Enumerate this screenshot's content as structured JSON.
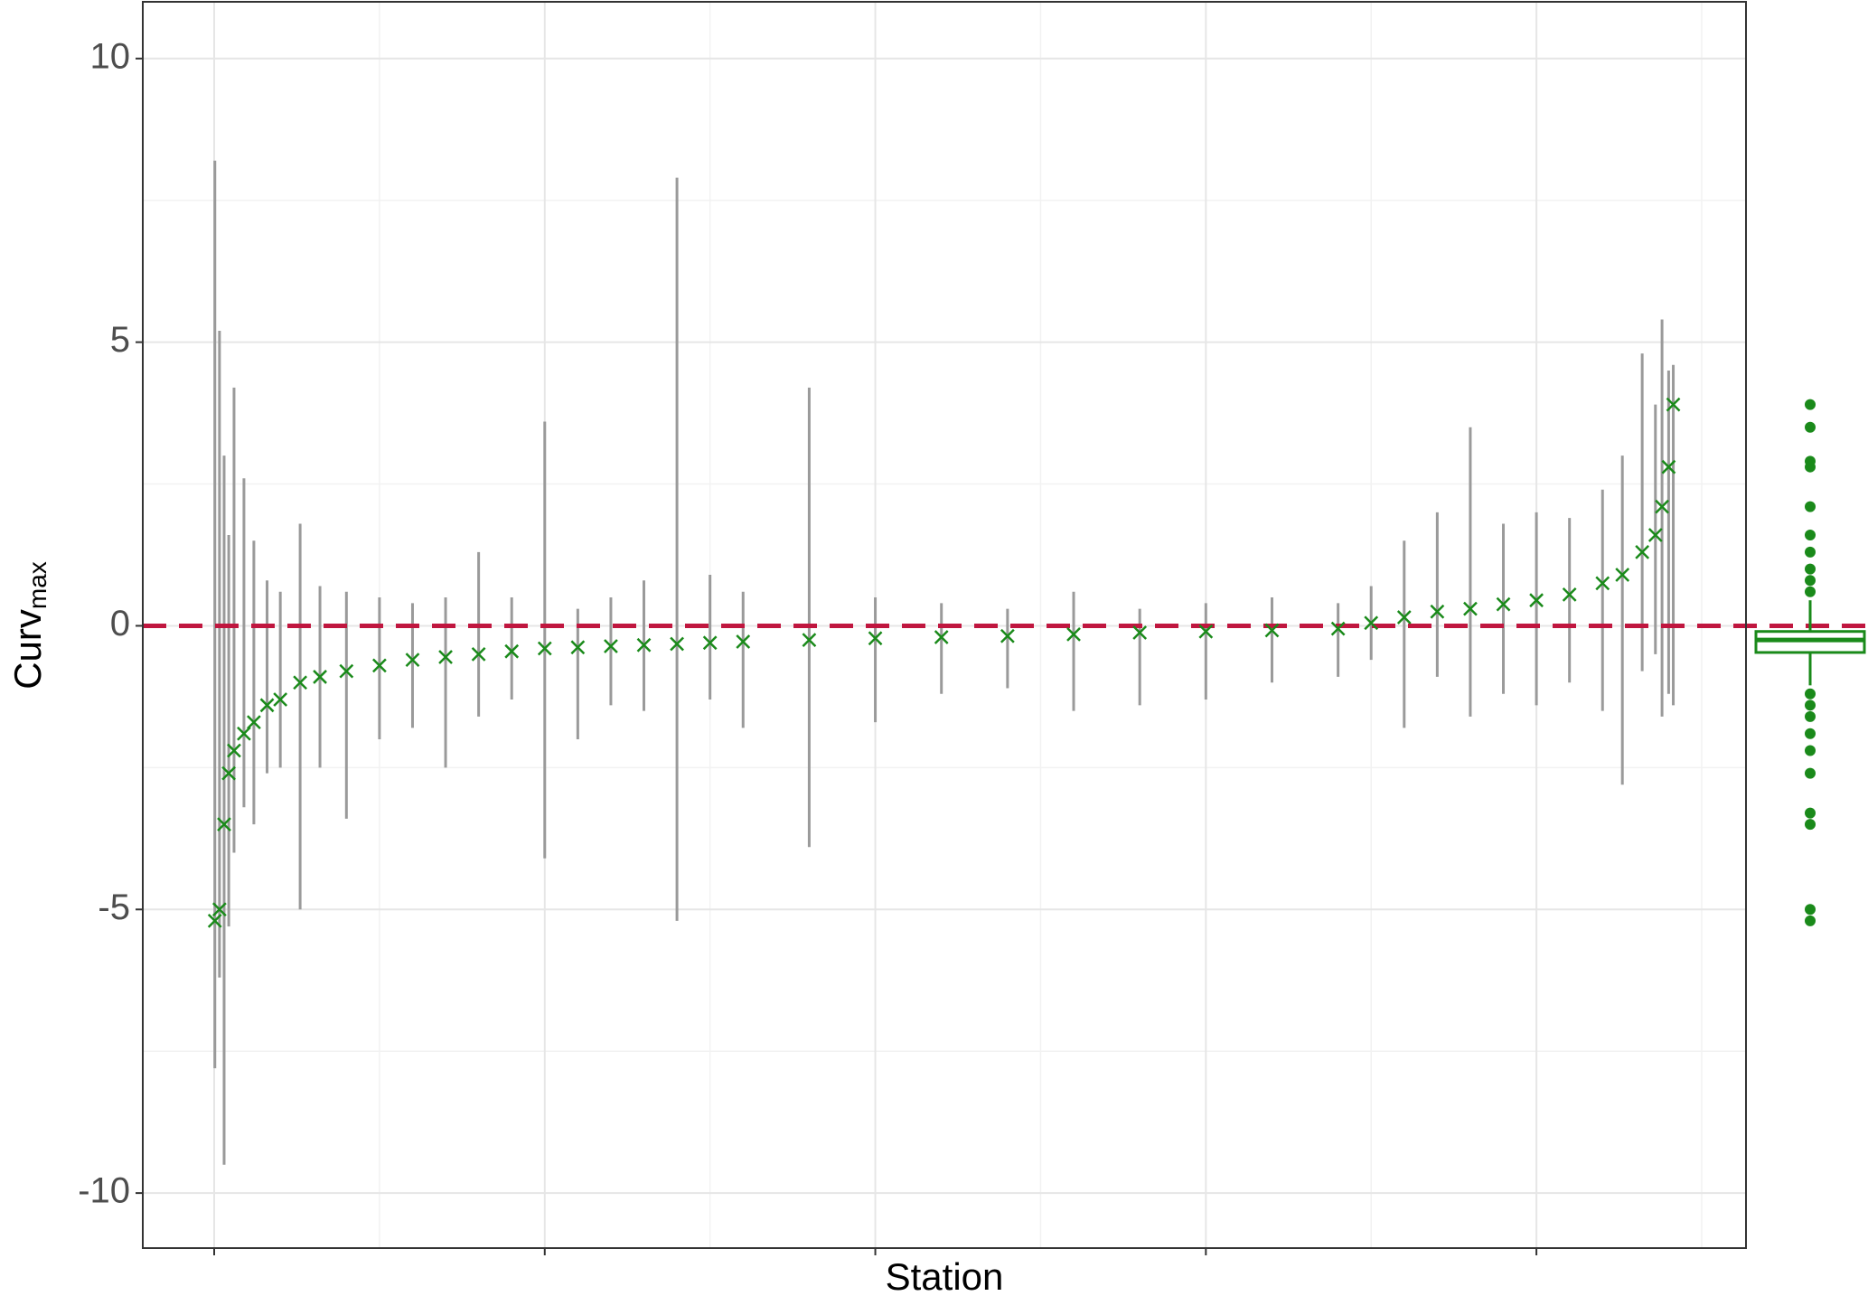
{
  "chart_data": {
    "type": "boxplot-series",
    "x_label": "Station",
    "y_label": "Curv",
    "y_label_sub": "max",
    "xlim": [
      -108,
      2317
    ],
    "xticks": [
      0,
      500,
      1000,
      1500,
      2000
    ],
    "xminor": [
      250,
      750,
      1250,
      1750,
      2250
    ],
    "ylim": [
      -10.97,
      11.0
    ],
    "yticks": [
      -10,
      -5,
      0,
      5,
      10
    ],
    "yminor": [
      -7.5,
      -2.5,
      2.5,
      7.5
    ],
    "grid": true,
    "hline": 0,
    "hline_color": "#c0163f",
    "whisker_color": "#9a9a9a",
    "median_color": "#1a8a1a",
    "x": [
      1,
      8,
      15,
      22,
      30,
      45,
      60,
      80,
      100,
      130,
      160,
      200,
      250,
      300,
      350,
      400,
      450,
      500,
      550,
      600,
      650,
      700,
      750,
      800,
      900,
      1000,
      1100,
      1200,
      1300,
      1400,
      1500,
      1600,
      1700,
      1750,
      1800,
      1850,
      1900,
      1950,
      2000,
      2050,
      2100,
      2130,
      2160,
      2180,
      2190,
      2200,
      2207
    ],
    "medians": [
      -5.2,
      -5.0,
      -3.5,
      -2.6,
      -2.2,
      -1.9,
      -1.7,
      -1.4,
      -1.3,
      -1.0,
      -0.9,
      -0.8,
      -0.7,
      -0.6,
      -0.55,
      -0.5,
      -0.45,
      -0.4,
      -0.38,
      -0.36,
      -0.34,
      -0.32,
      -0.3,
      -0.28,
      -0.25,
      -0.22,
      -0.2,
      -0.18,
      -0.15,
      -0.12,
      -0.1,
      -0.08,
      -0.05,
      0.05,
      0.15,
      0.25,
      0.3,
      0.38,
      0.45,
      0.55,
      0.75,
      0.9,
      1.3,
      1.6,
      2.1,
      2.8,
      3.9
    ],
    "whisker_low": [
      -7.8,
      -6.2,
      -9.5,
      -5.3,
      -4.0,
      -3.2,
      -3.5,
      -2.6,
      -2.5,
      -5.0,
      -2.5,
      -3.4,
      -2.0,
      -1.8,
      -2.5,
      -1.6,
      -1.3,
      -4.1,
      -2.0,
      -1.4,
      -1.5,
      -5.2,
      -1.3,
      -1.8,
      -3.9,
      -1.7,
      -1.2,
      -1.1,
      -1.5,
      -1.4,
      -1.3,
      -1.0,
      -0.9,
      -0.6,
      -1.8,
      -0.9,
      -1.6,
      -1.2,
      -1.4,
      -1.0,
      -1.5,
      -2.8,
      -0.8,
      -0.5,
      -1.6,
      -1.2,
      -1.4
    ],
    "whisker_high": [
      8.2,
      5.2,
      3.0,
      1.6,
      4.2,
      2.6,
      1.5,
      0.8,
      0.6,
      1.8,
      0.7,
      0.6,
      0.5,
      0.4,
      0.5,
      1.3,
      0.5,
      3.6,
      0.3,
      0.5,
      0.8,
      7.9,
      0.9,
      0.6,
      4.2,
      0.5,
      0.4,
      0.3,
      0.6,
      0.3,
      0.4,
      0.5,
      0.4,
      0.7,
      1.5,
      2.0,
      3.5,
      1.8,
      2.0,
      1.9,
      2.4,
      3.0,
      4.8,
      3.9,
      5.4,
      4.5,
      4.6
    ],
    "summary": {
      "q1": -0.47,
      "median": -0.25,
      "q3": -0.1,
      "whisker_low": -1.05,
      "whisker_high": 0.45,
      "outliers": [
        3.9,
        3.5,
        2.9,
        2.8,
        2.1,
        1.6,
        1.3,
        1.0,
        0.8,
        0.6,
        -1.2,
        -1.4,
        -1.6,
        -1.9,
        -2.2,
        -2.6,
        -3.3,
        -3.5,
        -5.0,
        -5.2
      ]
    }
  }
}
